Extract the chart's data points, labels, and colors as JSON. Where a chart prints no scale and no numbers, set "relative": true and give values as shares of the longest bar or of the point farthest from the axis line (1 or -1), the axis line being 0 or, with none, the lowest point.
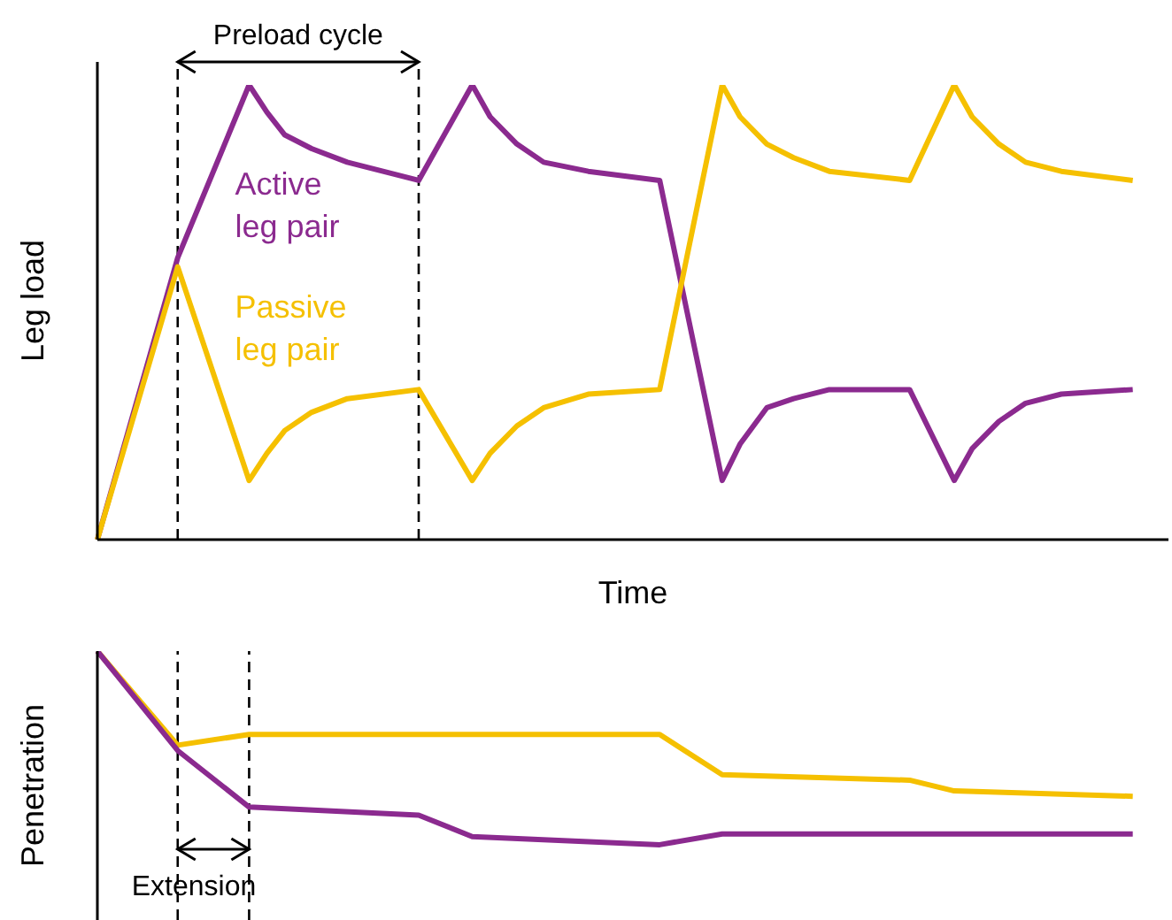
{
  "chart_data": [
    {
      "type": "line",
      "relative": true,
      "xlabel": "Time",
      "ylabel": "Leg load",
      "marker": "none",
      "line_style": "solid",
      "annotations": [
        "Preload cycle"
      ],
      "categories": [
        null,
        null,
        null,
        null,
        null,
        null,
        null,
        null,
        null,
        null,
        null,
        null,
        null,
        null,
        null,
        null,
        null,
        null,
        null,
        null,
        null,
        null,
        null,
        null,
        null,
        null,
        null,
        null,
        null,
        null,
        null,
        null,
        null,
        null,
        null,
        null,
        null,
        null,
        null,
        null,
        null,
        null,
        null,
        null,
        null,
        null,
        null,
        null,
        null,
        null,
        null,
        null,
        null,
        null,
        null,
        null,
        null,
        null,
        null,
        null,
        null,
        null,
        null,
        null,
        null,
        null,
        null,
        null,
        null,
        null,
        null,
        null,
        null,
        null,
        null,
        null,
        null,
        null,
        null,
        null,
        null,
        null,
        null,
        null,
        null,
        null,
        null,
        null,
        null,
        null,
        null,
        null,
        null,
        null,
        null,
        null,
        null,
        null,
        null,
        null,
        null,
        null,
        null,
        null,
        null,
        null,
        null,
        null,
        null,
        null,
        null,
        null,
        null,
        null,
        null,
        null,
        null,
        null,
        null,
        null,
        null
      ],
      "series": [
        {
          "name": "Active leg pair",
          "color": "#8b2a8f",
          "values": [
            0,
            null,
            null,
            null,
            null,
            null,
            null,
            null,
            null,
            0.62,
            null,
            null,
            null,
            null,
            null,
            null,
            null,
            1,
            null,
            0.94,
            null,
            0.89,
            null,
            null,
            0.86,
            null,
            null,
            null,
            0.83,
            null,
            null,
            null,
            null,
            null,
            null,
            null,
            0.79,
            null,
            null,
            null,
            null,
            null,
            1,
            null,
            0.93,
            null,
            null,
            0.87,
            null,
            null,
            0.83,
            null,
            null,
            null,
            null,
            0.81,
            null,
            null,
            null,
            null,
            null,
            null,
            null,
            0.79,
            null,
            null,
            null,
            null,
            null,
            null,
            0.13,
            null,
            0.21,
            null,
            null,
            0.29,
            null,
            null,
            0.31,
            null,
            null,
            null,
            0.33,
            null,
            null,
            null,
            null,
            null,
            null,
            null,
            null,
            0.33,
            null,
            null,
            null,
            null,
            0.13,
            null,
            0.2,
            null,
            null,
            0.26,
            null,
            null,
            0.3,
            null,
            null,
            null,
            0.32,
            null,
            null,
            null,
            null,
            null,
            null,
            null,
            0.33,
            null,
            null,
            null,
            null
          ]
        },
        {
          "name": "Passive leg pair",
          "color": "#f5c000",
          "values": [
            0,
            null,
            null,
            null,
            null,
            null,
            null,
            null,
            null,
            0.6,
            null,
            null,
            null,
            null,
            null,
            null,
            null,
            0.13,
            null,
            0.19,
            null,
            0.24,
            null,
            null,
            0.28,
            null,
            null,
            null,
            0.31,
            null,
            null,
            null,
            null,
            null,
            null,
            null,
            0.33,
            null,
            null,
            null,
            null,
            null,
            0.13,
            null,
            0.19,
            null,
            null,
            0.25,
            null,
            null,
            0.29,
            null,
            null,
            null,
            null,
            0.32,
            null,
            null,
            null,
            null,
            null,
            null,
            null,
            0.33,
            null,
            null,
            null,
            null,
            null,
            null,
            1,
            null,
            0.93,
            null,
            null,
            0.87,
            null,
            null,
            0.84,
            null,
            null,
            null,
            0.81,
            null,
            null,
            null,
            null,
            null,
            null,
            null,
            null,
            0.79,
            null,
            null,
            null,
            null,
            1,
            null,
            0.93,
            null,
            null,
            0.87,
            null,
            null,
            0.83,
            null,
            null,
            null,
            0.81,
            null,
            null,
            null,
            null,
            null,
            null,
            null,
            0.79,
            null,
            null,
            null,
            null
          ]
        }
      ]
    },
    {
      "type": "line",
      "relative": true,
      "ylabel": "Penetration",
      "marker": "none",
      "line_style": "solid",
      "annotations": [
        "Extension"
      ],
      "categories": [
        null,
        null,
        null,
        null,
        null,
        null,
        null,
        null,
        null,
        null,
        null,
        null,
        null,
        null,
        null,
        null,
        null,
        null,
        null,
        null,
        null,
        null,
        null,
        null,
        null,
        null,
        null,
        null,
        null,
        null,
        null,
        null,
        null,
        null,
        null,
        null,
        null,
        null,
        null,
        null,
        null,
        null,
        null,
        null,
        null,
        null,
        null,
        null,
        null,
        null,
        null,
        null,
        null,
        null,
        null,
        null,
        null,
        null,
        null,
        null,
        null,
        null,
        null,
        null,
        null,
        null,
        null,
        null,
        null,
        null,
        null,
        null,
        null,
        null,
        null,
        null,
        null,
        null,
        null,
        null,
        null,
        null,
        null,
        null,
        null,
        null,
        null,
        null,
        null,
        null,
        null,
        null,
        null,
        null,
        null,
        null,
        null,
        null,
        null,
        null,
        null,
        null,
        null,
        null,
        null,
        null,
        null,
        null,
        null,
        null,
        null,
        null,
        null,
        null,
        null,
        null,
        null,
        null,
        null,
        null,
        null
      ],
      "series": [
        {
          "color": "#f5c000",
          "values": [
            1,
            null,
            null,
            null,
            null,
            null,
            null,
            null,
            null,
            0.65,
            null,
            null,
            null,
            null,
            null,
            null,
            null,
            0.69,
            null,
            null,
            null,
            null,
            null,
            null,
            null,
            null,
            null,
            null,
            null,
            null,
            null,
            null,
            null,
            null,
            null,
            null,
            null,
            null,
            null,
            null,
            null,
            null,
            null,
            null,
            null,
            null,
            null,
            null,
            null,
            null,
            null,
            null,
            null,
            null,
            null,
            null,
            null,
            null,
            null,
            null,
            null,
            null,
            null,
            0.69,
            null,
            null,
            null,
            null,
            null,
            null,
            0.54,
            null,
            null,
            null,
            null,
            null,
            null,
            null,
            null,
            null,
            null,
            null,
            null,
            null,
            null,
            null,
            null,
            null,
            null,
            null,
            null,
            0.52,
            null,
            null,
            null,
            null,
            0.48,
            null,
            null,
            null,
            null,
            null,
            null,
            null,
            null,
            null,
            null,
            null,
            null,
            null,
            null,
            null,
            null,
            null,
            null,
            null,
            0.46,
            null,
            null,
            null,
            null
          ]
        },
        {
          "color": "#8b2a8f",
          "values": [
            1,
            null,
            null,
            null,
            null,
            null,
            null,
            null,
            null,
            0.63,
            null,
            null,
            null,
            null,
            null,
            null,
            null,
            0.42,
            null,
            null,
            null,
            null,
            null,
            null,
            null,
            null,
            null,
            null,
            null,
            null,
            null,
            null,
            null,
            null,
            null,
            null,
            0.39,
            null,
            null,
            null,
            null,
            null,
            0.31,
            null,
            null,
            null,
            null,
            null,
            null,
            null,
            null,
            null,
            null,
            null,
            null,
            null,
            null,
            null,
            null,
            null,
            null,
            null,
            null,
            0.28,
            null,
            null,
            null,
            null,
            null,
            null,
            0.32,
            null,
            null,
            null,
            null,
            null,
            null,
            null,
            null,
            null,
            null,
            null,
            null,
            null,
            null,
            null,
            null,
            null,
            null,
            null,
            null,
            null,
            null,
            null,
            null,
            null,
            null,
            null,
            null,
            null,
            null,
            null,
            null,
            null,
            null,
            null,
            null,
            null,
            null,
            null,
            null,
            null,
            null,
            null,
            null,
            null,
            0.32,
            null,
            null,
            null,
            null
          ]
        }
      ]
    }
  ]
}
